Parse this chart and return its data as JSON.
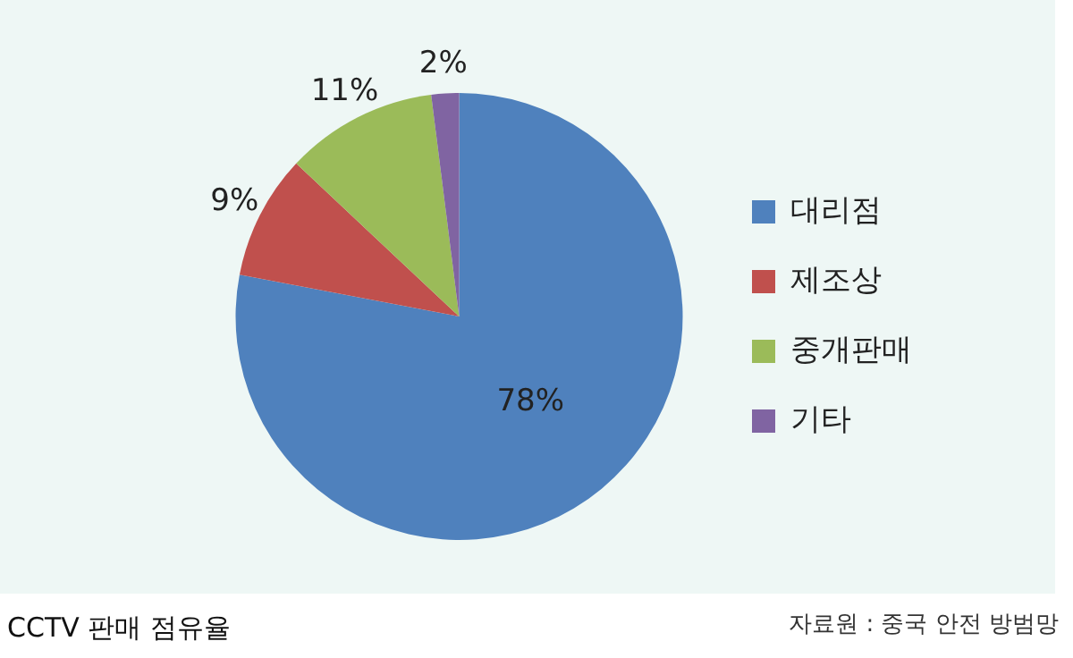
{
  "chart_data": {
    "type": "pie",
    "title": "CCTV 판매 점유율",
    "annotations": [
      "자료원 : 중국 안전 방범망"
    ],
    "categories": [
      "대리점",
      "제조상",
      "중개판매",
      "기타"
    ],
    "values": [
      78,
      9,
      11,
      2
    ],
    "value_labels": [
      "78%",
      "9%",
      "11%",
      "2%"
    ],
    "colors": [
      "#4f81bd",
      "#c0504d",
      "#9bbb59",
      "#8064a2"
    ],
    "legend": "right"
  }
}
